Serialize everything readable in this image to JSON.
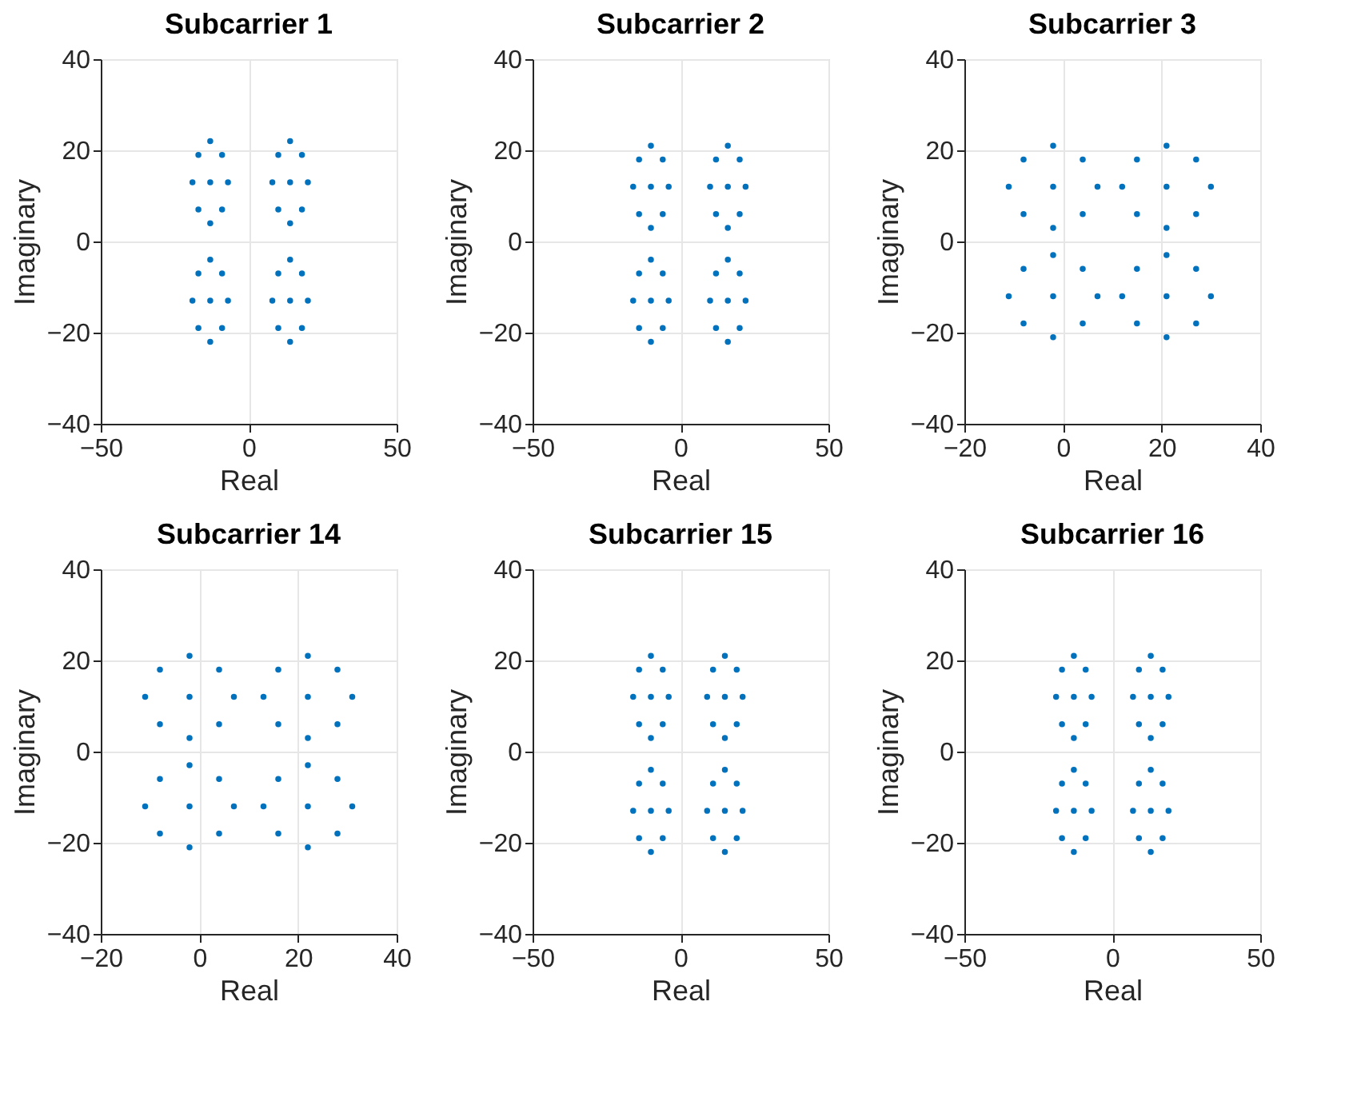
{
  "chart_data": [
    {
      "type": "scatter",
      "title": "Subcarrier 1",
      "xlabel": "Real",
      "ylabel": "Imaginary",
      "xlim": [
        -50,
        50
      ],
      "ylim": [
        -40,
        40
      ],
      "xticks": [
        -50,
        0,
        50
      ],
      "yticks": [
        -40,
        -20,
        0,
        20,
        40
      ],
      "grid": true,
      "marker": "circle",
      "series": [
        {
          "color": "#0072bd",
          "x": [
            -13,
            -19,
            -7,
            -13,
            -13,
            -17,
            -9,
            -17,
            -9,
            14,
            8,
            20,
            14,
            14,
            10,
            18,
            10,
            18,
            -13,
            -19,
            -7,
            -13,
            -13,
            -17,
            -9,
            -17,
            -9,
            14,
            8,
            20,
            14,
            14,
            10,
            18,
            10,
            18
          ],
          "values": [
            13,
            13,
            13,
            22,
            4,
            19,
            19,
            7,
            7,
            13,
            13,
            13,
            22,
            4,
            19,
            19,
            7,
            7,
            -13,
            -13,
            -13,
            -4,
            -22,
            -7,
            -7,
            -19,
            -19,
            -13,
            -13,
            -13,
            -4,
            -22,
            -7,
            -7,
            -19,
            -19
          ]
        }
      ]
    },
    {
      "type": "scatter",
      "title": "Subcarrier 2",
      "xlabel": "Real",
      "ylabel": "Imaginary",
      "xlim": [
        -50,
        50
      ],
      "ylim": [
        -40,
        40
      ],
      "xticks": [
        -50,
        0,
        50
      ],
      "yticks": [
        -40,
        -20,
        0,
        20,
        40
      ],
      "grid": true,
      "marker": "circle",
      "series": [
        {
          "color": "#0072bd",
          "x": [
            -10,
            -16,
            -4,
            -10,
            -10,
            -14,
            -6,
            -14,
            -6,
            16,
            10,
            22,
            16,
            16,
            12,
            20,
            12,
            20,
            -10,
            -16,
            -4,
            -10,
            -10,
            -14,
            -6,
            -14,
            -6,
            16,
            10,
            22,
            16,
            16,
            12,
            20,
            12,
            20
          ],
          "values": [
            12,
            12,
            12,
            21,
            3,
            18,
            18,
            6,
            6,
            12,
            12,
            12,
            21,
            3,
            18,
            18,
            6,
            6,
            -13,
            -13,
            -13,
            -4,
            -22,
            -7,
            -7,
            -19,
            -19,
            -13,
            -13,
            -13,
            -4,
            -22,
            -7,
            -7,
            -19,
            -19
          ]
        }
      ]
    },
    {
      "type": "scatter",
      "title": "Subcarrier 3",
      "xlabel": "Real",
      "ylabel": "Imaginary",
      "xlim": [
        -20,
        40
      ],
      "ylim": [
        -40,
        40
      ],
      "xticks": [
        -20,
        0,
        20,
        40
      ],
      "yticks": [
        -40,
        -20,
        0,
        20,
        40
      ],
      "grid": true,
      "marker": "circle",
      "series": [
        {
          "color": "#0072bd",
          "x": [
            -2,
            -11,
            7,
            -2,
            -2,
            -8,
            4,
            -8,
            4,
            21,
            12,
            30,
            21,
            21,
            15,
            27,
            15,
            27,
            -2,
            -11,
            7,
            -2,
            -2,
            -8,
            4,
            -8,
            4,
            21,
            12,
            30,
            21,
            21,
            15,
            27,
            15,
            27
          ],
          "values": [
            12,
            12,
            12,
            21,
            3,
            18,
            18,
            6,
            6,
            12,
            12,
            12,
            21,
            3,
            18,
            18,
            6,
            6,
            -12,
            -12,
            -12,
            -3,
            -21,
            -6,
            -6,
            -18,
            -18,
            -12,
            -12,
            -12,
            -3,
            -21,
            -6,
            -6,
            -18,
            -18
          ]
        }
      ]
    },
    {
      "type": "scatter",
      "title": "Subcarrier 14",
      "xlabel": "Real",
      "ylabel": "Imaginary",
      "xlim": [
        -20,
        40
      ],
      "ylim": [
        -40,
        40
      ],
      "xticks": [
        -20,
        0,
        20,
        40
      ],
      "yticks": [
        -40,
        -20,
        0,
        20,
        40
      ],
      "grid": true,
      "marker": "circle",
      "series": [
        {
          "color": "#0072bd",
          "x": [
            -2,
            -11,
            7,
            -2,
            -2,
            -8,
            4,
            -8,
            4,
            22,
            13,
            31,
            22,
            22,
            16,
            28,
            16,
            28,
            -2,
            -11,
            7,
            -2,
            -2,
            -8,
            4,
            -8,
            4,
            22,
            13,
            31,
            22,
            22,
            16,
            28,
            16,
            28
          ],
          "values": [
            12,
            12,
            12,
            21,
            3,
            18,
            18,
            6,
            6,
            12,
            12,
            12,
            21,
            3,
            18,
            18,
            6,
            6,
            -12,
            -12,
            -12,
            -3,
            -21,
            -6,
            -6,
            -18,
            -18,
            -12,
            -12,
            -12,
            -3,
            -21,
            -6,
            -6,
            -18,
            -18
          ]
        }
      ]
    },
    {
      "type": "scatter",
      "title": "Subcarrier 15",
      "xlabel": "Real",
      "ylabel": "Imaginary",
      "xlim": [
        -50,
        50
      ],
      "ylim": [
        -40,
        40
      ],
      "xticks": [
        -50,
        0,
        50
      ],
      "yticks": [
        -40,
        -20,
        0,
        20,
        40
      ],
      "grid": true,
      "marker": "circle",
      "series": [
        {
          "color": "#0072bd",
          "x": [
            -10,
            -16,
            -4,
            -10,
            -10,
            -14,
            -6,
            -14,
            -6,
            15,
            9,
            21,
            15,
            15,
            11,
            19,
            11,
            19,
            -10,
            -16,
            -4,
            -10,
            -10,
            -14,
            -6,
            -14,
            -6,
            15,
            9,
            21,
            15,
            15,
            11,
            19,
            11,
            19
          ],
          "values": [
            12,
            12,
            12,
            21,
            3,
            18,
            18,
            6,
            6,
            12,
            12,
            12,
            21,
            3,
            18,
            18,
            6,
            6,
            -13,
            -13,
            -13,
            -4,
            -22,
            -7,
            -7,
            -19,
            -19,
            -13,
            -13,
            -13,
            -4,
            -22,
            -7,
            -7,
            -19,
            -19
          ]
        }
      ]
    },
    {
      "type": "scatter",
      "title": "Subcarrier 16",
      "xlabel": "Real",
      "ylabel": "Imaginary",
      "xlim": [
        -50,
        50
      ],
      "ylim": [
        -40,
        40
      ],
      "xticks": [
        -50,
        0,
        50
      ],
      "yticks": [
        -40,
        -20,
        0,
        20,
        40
      ],
      "grid": true,
      "marker": "circle",
      "series": [
        {
          "color": "#0072bd",
          "x": [
            -13,
            -19,
            -7,
            -13,
            -13,
            -17,
            -9,
            -17,
            -9,
            13,
            7,
            19,
            13,
            13,
            9,
            17,
            9,
            17,
            -13,
            -19,
            -7,
            -13,
            -13,
            -17,
            -9,
            -17,
            -9,
            13,
            7,
            19,
            13,
            13,
            9,
            17,
            9,
            17
          ],
          "values": [
            12,
            12,
            12,
            21,
            3,
            18,
            18,
            6,
            6,
            12,
            12,
            12,
            21,
            3,
            18,
            18,
            6,
            6,
            -13,
            -13,
            -13,
            -4,
            -22,
            -7,
            -7,
            -19,
            -19,
            -13,
            -13,
            -13,
            -4,
            -22,
            -7,
            -7,
            -19,
            -19
          ]
        }
      ]
    }
  ]
}
